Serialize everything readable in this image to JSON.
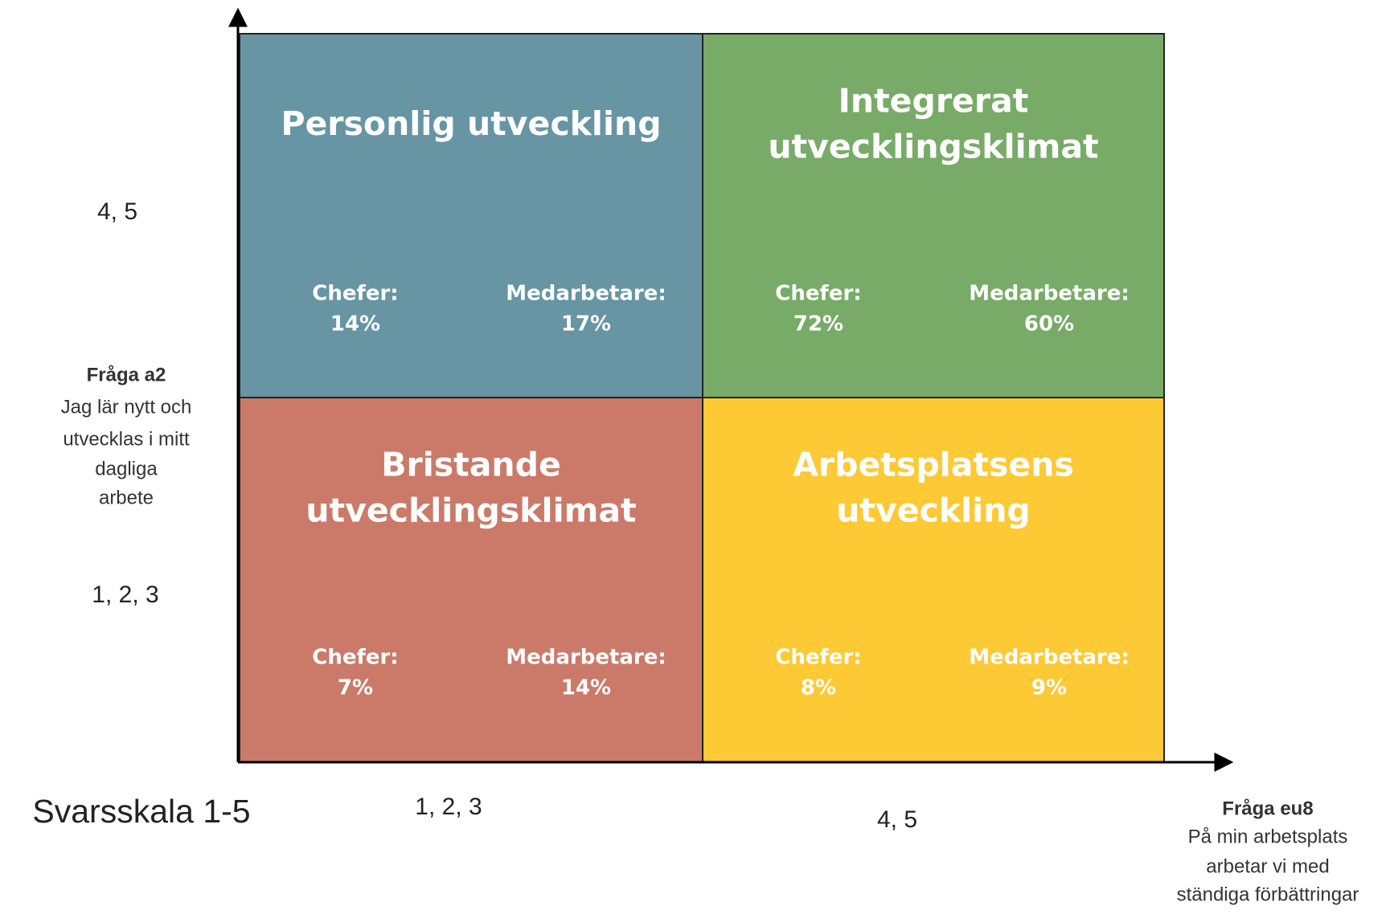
{
  "y_axis": {
    "high": "4, 5",
    "low": "1, 2, 3",
    "question": "Fråga a2",
    "description": [
      "Jag lär nytt och",
      "utvecklas i mitt",
      "dagliga",
      "arbete"
    ]
  },
  "x_axis": {
    "low": "1, 2, 3",
    "high": "4, 5",
    "question": "Fråga eu8",
    "description": [
      "På min arbetsplats",
      "arbetar vi med",
      "ständiga förbättringar"
    ]
  },
  "scale_label": "Svarsskala 1-5",
  "quadrants": [
    {
      "title": [
        "Personlig utveckling"
      ],
      "groups": [
        {
          "label": "Chefer:",
          "value": "14%"
        },
        {
          "label": "Medarbetare:",
          "value": "17%"
        }
      ]
    },
    {
      "title": [
        "Integrerat",
        "utvecklingsklimat"
      ],
      "groups": [
        {
          "label": "Chefer:",
          "value": "72%"
        },
        {
          "label": "Medarbetare:",
          "value": "60%"
        }
      ]
    },
    {
      "title": [
        "Bristande",
        "utvecklingsklimat"
      ],
      "groups": [
        {
          "label": "Chefer:",
          "value": "7%"
        },
        {
          "label": "Medarbetare:",
          "value": "14%"
        }
      ]
    },
    {
      "title": [
        "Arbetsplatsens",
        "utveckling"
      ],
      "groups": [
        {
          "label": "Chefer:",
          "value": "8%"
        },
        {
          "label": "Medarbetare:",
          "value": "9%"
        }
      ]
    }
  ]
}
